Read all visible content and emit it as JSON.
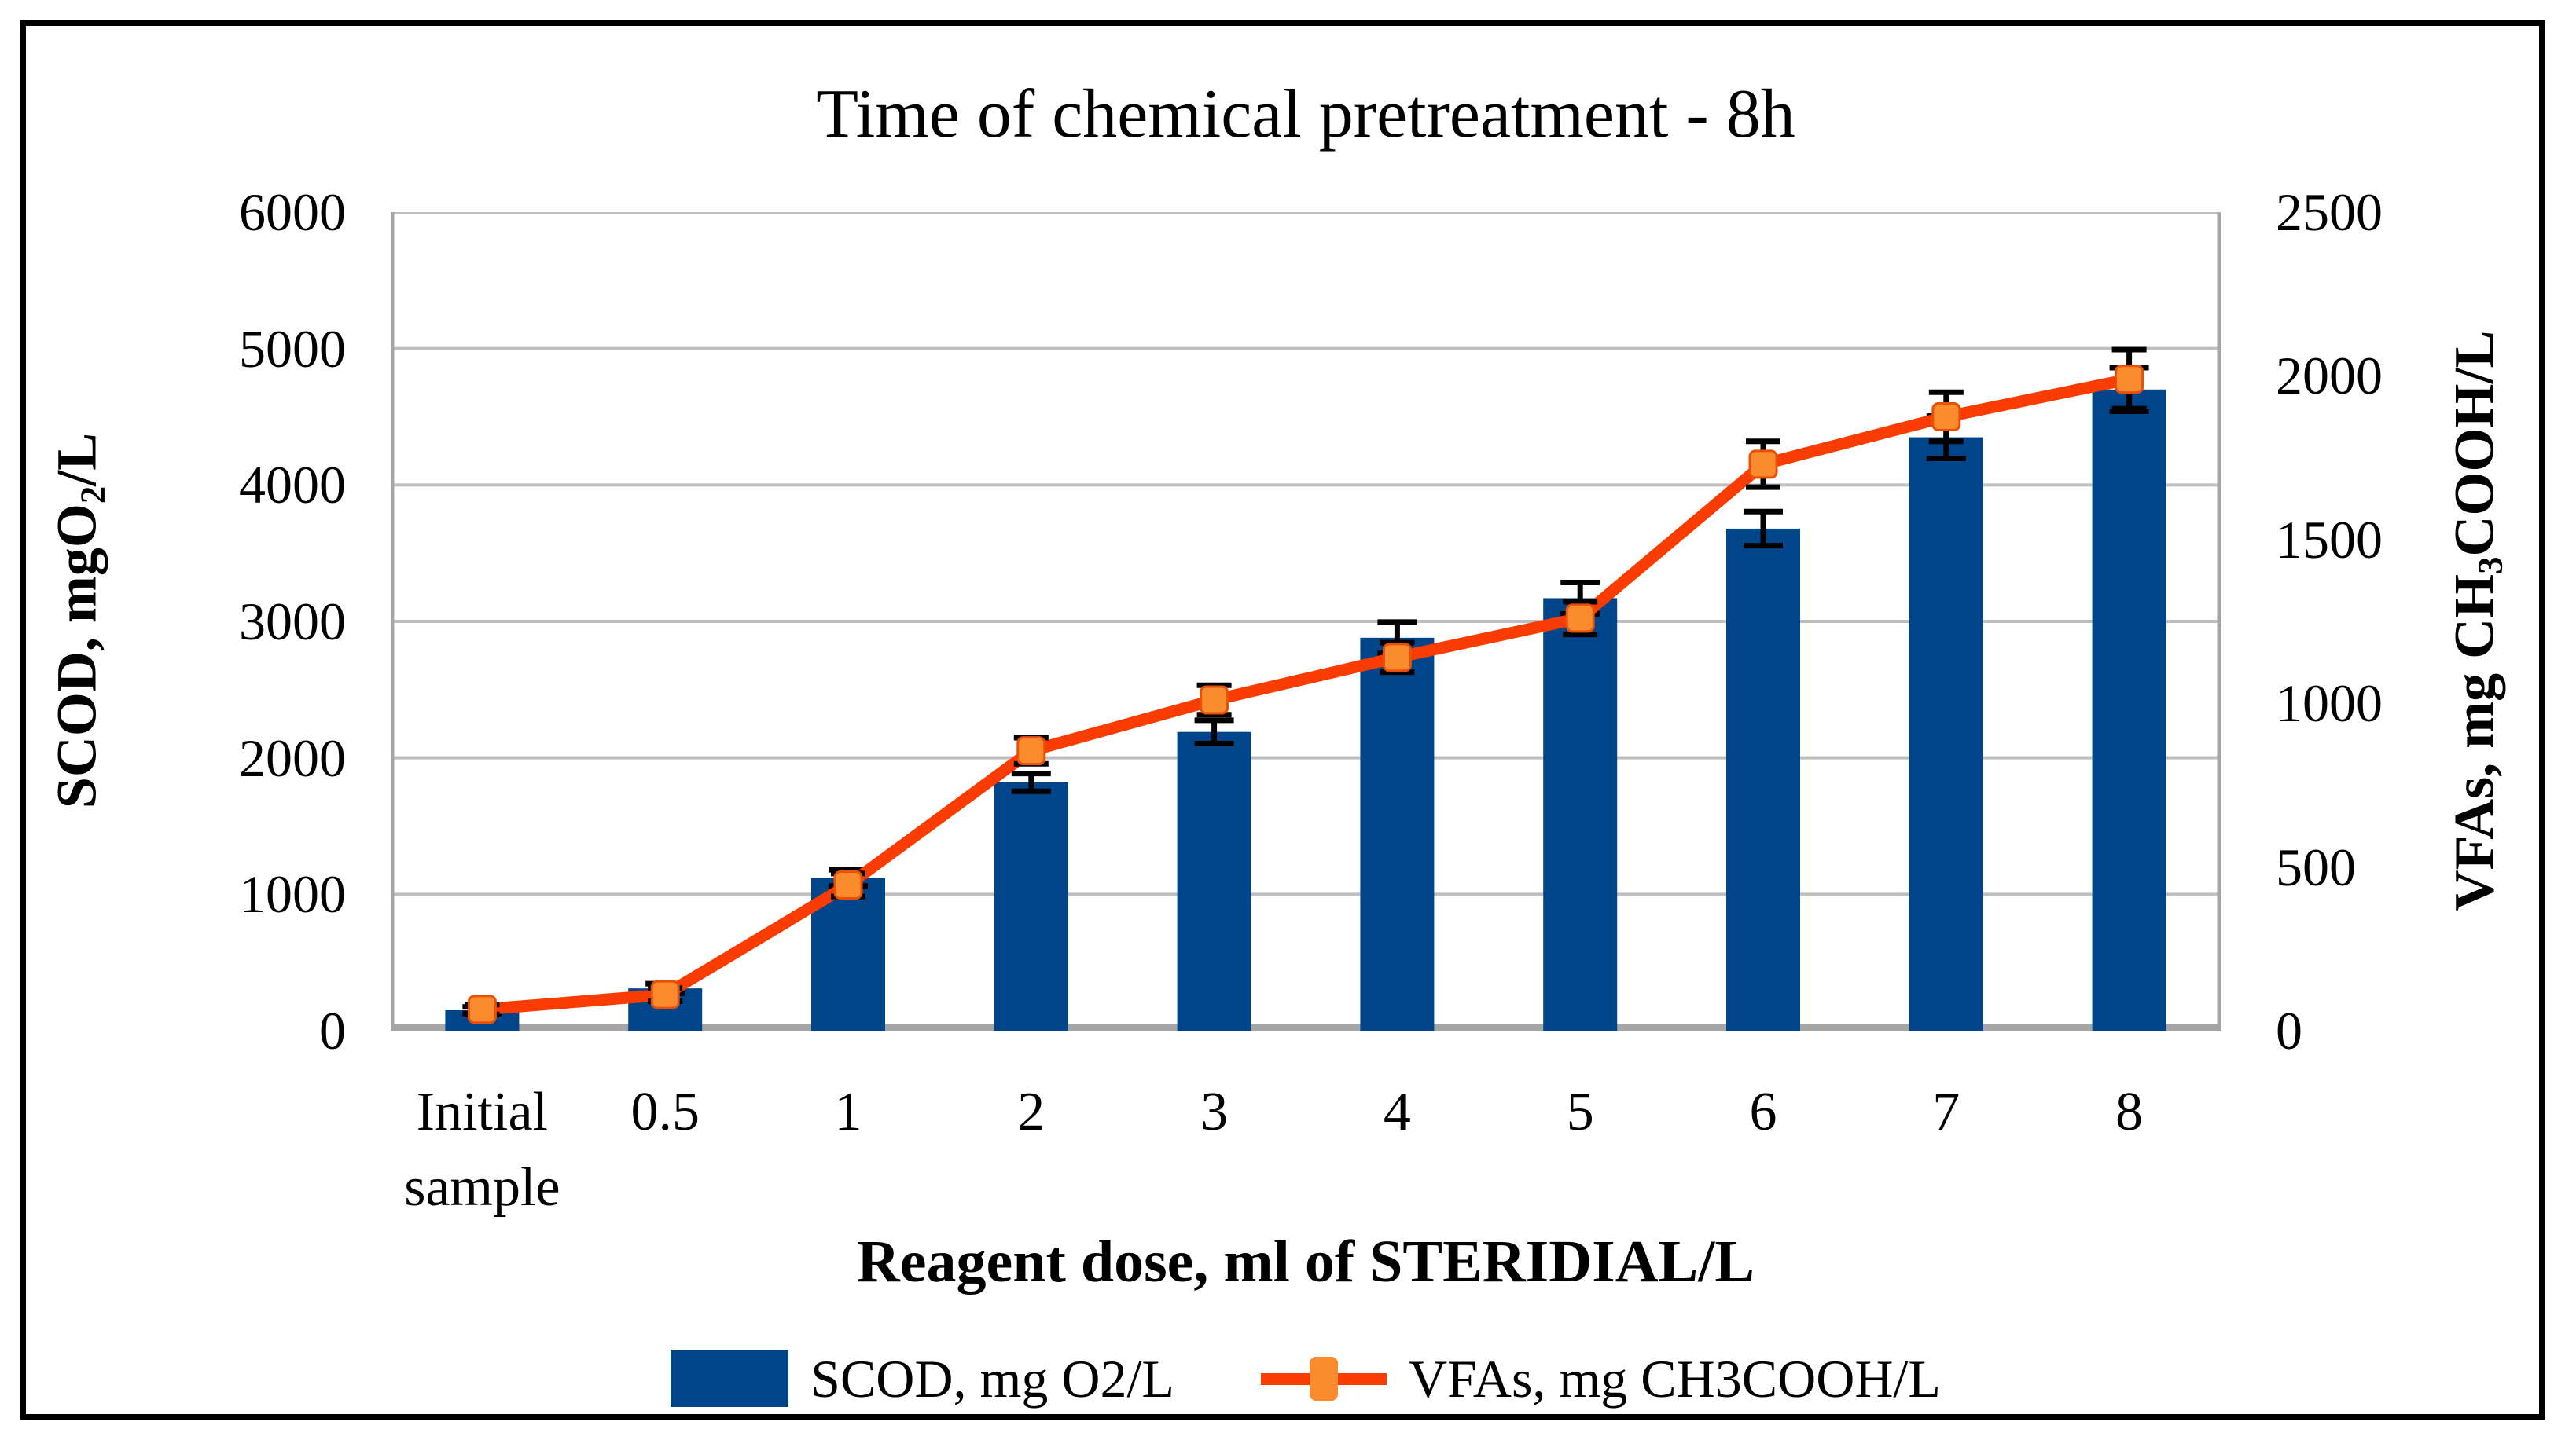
{
  "figure": {
    "title": "Time of chemical pretreatment - 8h"
  },
  "axis_left": {
    "title_pre": "SCOD, mgO",
    "title_sub": "2",
    "title_post": "/L",
    "ticks": [
      "6000",
      "5000",
      "4000",
      "3000",
      "2000",
      "1000",
      "0"
    ]
  },
  "axis_right": {
    "title_pre": "VFAs, mg CH",
    "title_sub": "3",
    "title_post": "COOH/L",
    "ticks": [
      "2500",
      "2000",
      "1500",
      "1000",
      "500",
      "0"
    ]
  },
  "axis_x": {
    "title": "Reagent dose, ml of STERIDIAL/L"
  },
  "legend": {
    "scod_label": "SCOD, mg O2/L",
    "vfa_label": "VFAs, mg CH3COOH/L"
  },
  "colors": {
    "bar": "#00458A",
    "line": "#FA3C00",
    "marker_fill": "#FB8C2E",
    "marker_edge": "#E8500A",
    "grid": "#BFBFBF",
    "axis": "#A6A6A6",
    "error": "#000000"
  },
  "chart_data": {
    "type": "bar+line",
    "title": "Time of chemical pretreatment - 8h",
    "xlabel": "Reagent dose, ml of STERIDIAL/L",
    "ylabel_left": "SCOD, mgO2/L",
    "ylabel_right": "VFAs, mg CH3COOH/L",
    "categories": [
      "Initial sample",
      "0.5",
      "1",
      "2",
      "3",
      "4",
      "5",
      "6",
      "7",
      "8"
    ],
    "series": [
      {
        "name": "SCOD, mg O2/L",
        "type": "bar",
        "axis": "left",
        "values": [
          150,
          310,
          1120,
          1820,
          2190,
          2880,
          3170,
          3680,
          4350,
          4700
        ],
        "errors": [
          25,
          35,
          60,
          65,
          85,
          115,
          115,
          125,
          155,
          160
        ]
      },
      {
        "name": "VFAs, mg CH3COOH/L",
        "type": "line",
        "axis": "right",
        "values": [
          65,
          110,
          445,
          855,
          1010,
          1140,
          1260,
          1730,
          1875,
          1990
        ],
        "errors": [
          15,
          20,
          35,
          40,
          45,
          45,
          50,
          70,
          75,
          90
        ]
      }
    ],
    "axis_left_range": [
      0,
      6000
    ],
    "axis_left_step": 1000,
    "axis_right_range": [
      0,
      2500
    ],
    "axis_right_step": 500,
    "grid": true,
    "legend_position": "bottom"
  }
}
